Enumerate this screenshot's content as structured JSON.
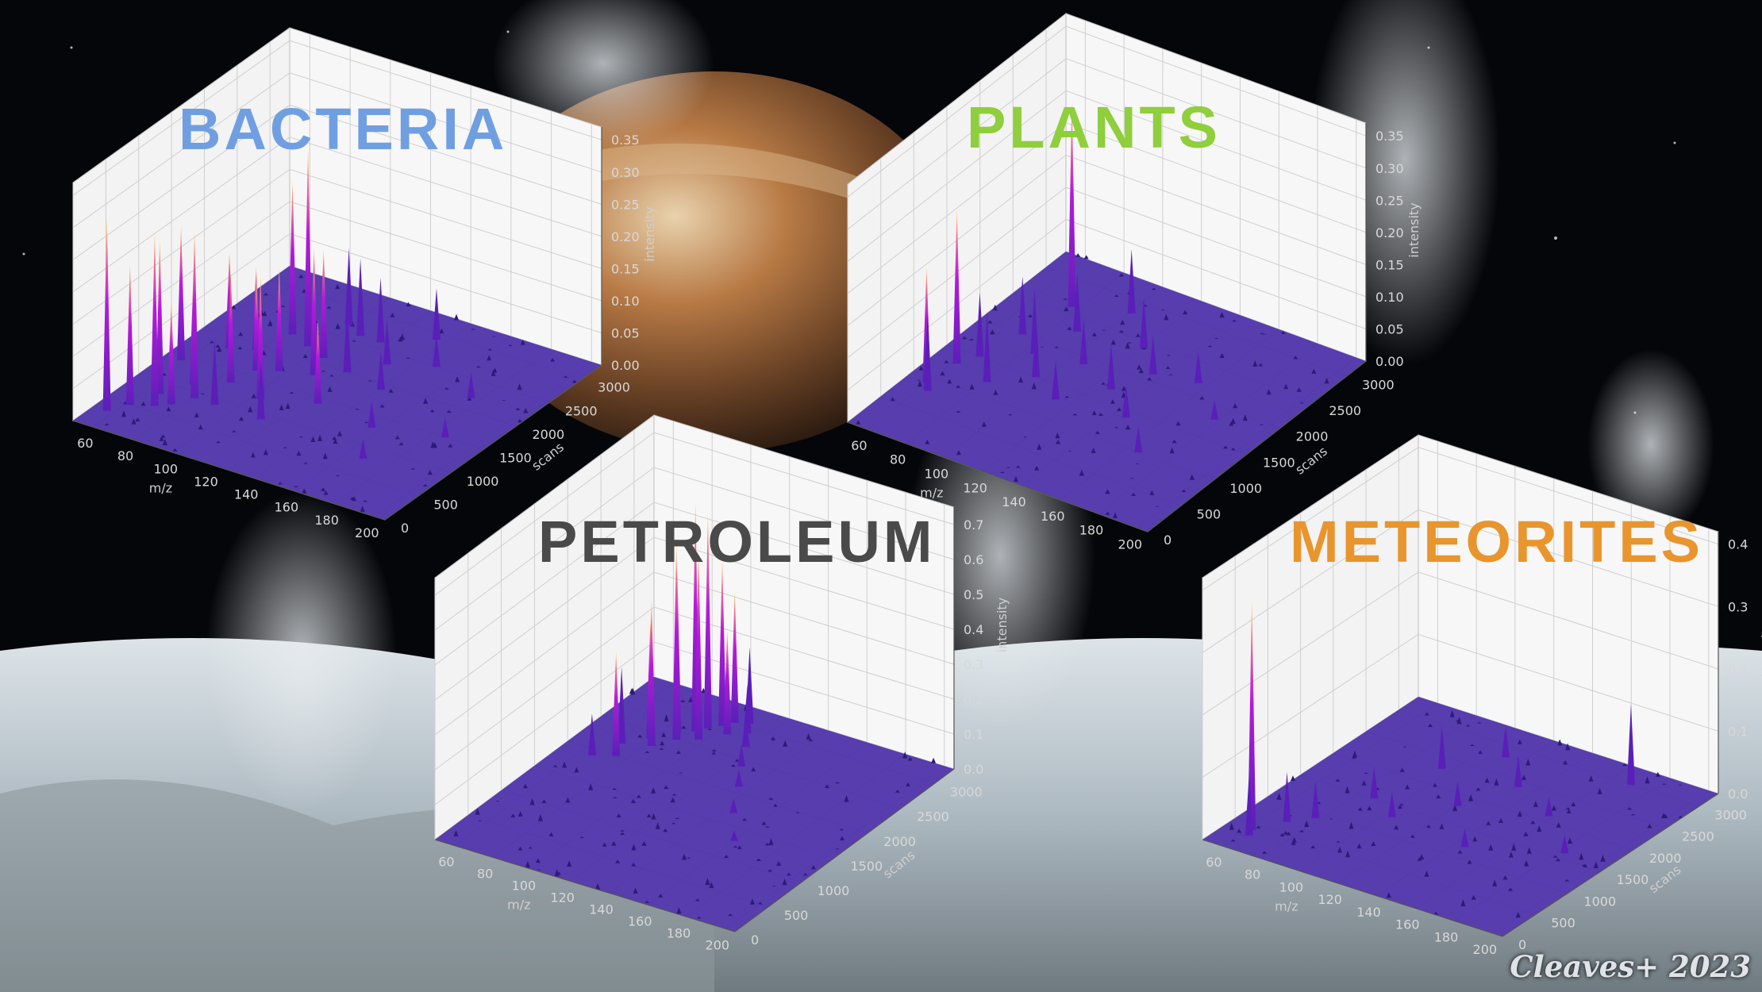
{
  "credit": "Cleaves+ 2023",
  "colors": {
    "bacteria": "#6f9fe0",
    "plants": "#8fce3c",
    "petroleum": "#4a4a4a",
    "meteorites": "#e8952e",
    "surface": "#4a2ea8",
    "peak_low": "#5a1fb8",
    "peak_mid": "#b51ad9",
    "peak_high": "#ffd85a"
  },
  "chart_data": [
    {
      "type": "3d-surface",
      "title": "BACTERIA",
      "xlabel": "m/z",
      "ylabel": "scans",
      "zlabel": "intensity",
      "x_ticks": [
        "60",
        "80",
        "100",
        "120",
        "140",
        "160",
        "180",
        "200"
      ],
      "y_ticks": [
        "0",
        "500",
        "1000",
        "1500",
        "2000",
        "2500",
        "3000"
      ],
      "z_ticks": [
        "0.00",
        "0.05",
        "0.10",
        "0.15",
        "0.20",
        "0.25",
        "0.30",
        "0.35"
      ],
      "xlim": [
        50,
        205
      ],
      "ylim": [
        0,
        3300
      ],
      "zlim": [
        0,
        0.37
      ],
      "peaks": [
        {
          "x": 57,
          "y": 300,
          "z": 0.3
        },
        {
          "x": 58,
          "y": 1400,
          "z": 0.21
        },
        {
          "x": 62,
          "y": 500,
          "z": 0.22
        },
        {
          "x": 67,
          "y": 800,
          "z": 0.24
        },
        {
          "x": 69,
          "y": 1800,
          "z": 0.15
        },
        {
          "x": 71,
          "y": 600,
          "z": 0.27
        },
        {
          "x": 74,
          "y": 1100,
          "z": 0.18
        },
        {
          "x": 76,
          "y": 700,
          "z": 0.16
        },
        {
          "x": 79,
          "y": 1900,
          "z": 0.13
        },
        {
          "x": 81,
          "y": 900,
          "z": 0.26
        },
        {
          "x": 84,
          "y": 2300,
          "z": 0.24
        },
        {
          "x": 86,
          "y": 1300,
          "z": 0.17
        },
        {
          "x": 89,
          "y": 1600,
          "z": 0.14
        },
        {
          "x": 91,
          "y": 900,
          "z": 0.1
        },
        {
          "x": 95,
          "y": 2200,
          "z": 0.31
        },
        {
          "x": 97,
          "y": 1700,
          "z": 0.16
        },
        {
          "x": 99,
          "y": 2700,
          "z": 0.12
        },
        {
          "x": 104,
          "y": 1200,
          "z": 0.19
        },
        {
          "x": 106,
          "y": 2100,
          "z": 0.17
        },
        {
          "x": 108,
          "y": 2600,
          "z": 0.12
        },
        {
          "x": 111,
          "y": 1800,
          "z": 0.2
        },
        {
          "x": 114,
          "y": 900,
          "z": 0.09
        },
        {
          "x": 118,
          "y": 2600,
          "z": 0.1
        },
        {
          "x": 121,
          "y": 2000,
          "z": 0.11
        },
        {
          "x": 126,
          "y": 1400,
          "z": 0.13
        },
        {
          "x": 131,
          "y": 2300,
          "z": 0.07
        },
        {
          "x": 136,
          "y": 2900,
          "z": 0.08
        },
        {
          "x": 141,
          "y": 1900,
          "z": 0.06
        },
        {
          "x": 149,
          "y": 2500,
          "z": 0.05
        },
        {
          "x": 156,
          "y": 1300,
          "z": 0.04
        },
        {
          "x": 168,
          "y": 800,
          "z": 0.03
        },
        {
          "x": 176,
          "y": 2200,
          "z": 0.04
        },
        {
          "x": 186,
          "y": 1500,
          "z": 0.03
        }
      ]
    },
    {
      "type": "3d-surface",
      "title": "PLANTS",
      "xlabel": "m/z",
      "ylabel": "scans",
      "zlabel": "intensity",
      "x_ticks": [
        "60",
        "80",
        "100",
        "120",
        "140",
        "160",
        "180",
        "200"
      ],
      "y_ticks": [
        "0",
        "500",
        "1000",
        "1500",
        "2000",
        "2500",
        "3000"
      ],
      "z_ticks": [
        "0.00",
        "0.05",
        "0.10",
        "0.15",
        "0.20",
        "0.25",
        "0.30",
        "0.35"
      ],
      "xlim": [
        50,
        205
      ],
      "ylim": [
        0,
        3300
      ],
      "zlim": [
        0,
        0.37
      ],
      "peaks": [
        {
          "x": 60,
          "y": 900,
          "z": 0.18
        },
        {
          "x": 62,
          "y": 1300,
          "z": 0.24
        },
        {
          "x": 64,
          "y": 800,
          "z": 0.12
        },
        {
          "x": 67,
          "y": 1500,
          "z": 0.1
        },
        {
          "x": 72,
          "y": 2000,
          "z": 0.09
        },
        {
          "x": 77,
          "y": 2600,
          "z": 0.32
        },
        {
          "x": 81,
          "y": 1200,
          "z": 0.11
        },
        {
          "x": 85,
          "y": 1800,
          "z": 0.1
        },
        {
          "x": 90,
          "y": 2300,
          "z": 0.09
        },
        {
          "x": 96,
          "y": 1500,
          "z": 0.08
        },
        {
          "x": 101,
          "y": 2800,
          "z": 0.1
        },
        {
          "x": 107,
          "y": 1900,
          "z": 0.07
        },
        {
          "x": 113,
          "y": 1300,
          "z": 0.06
        },
        {
          "x": 121,
          "y": 2400,
          "z": 0.08
        },
        {
          "x": 128,
          "y": 1700,
          "z": 0.07
        },
        {
          "x": 136,
          "y": 2100,
          "z": 0.06
        },
        {
          "x": 146,
          "y": 1400,
          "z": 0.05
        },
        {
          "x": 156,
          "y": 2200,
          "z": 0.05
        },
        {
          "x": 166,
          "y": 1000,
          "z": 0.04
        },
        {
          "x": 178,
          "y": 1800,
          "z": 0.03
        }
      ]
    },
    {
      "type": "3d-surface",
      "title": "PETROLEUM",
      "xlabel": "m/z",
      "ylabel": "scans",
      "zlabel": "intensity",
      "x_ticks": [
        "60",
        "80",
        "100",
        "120",
        "140",
        "160",
        "180",
        "200"
      ],
      "y_ticks": [
        "0",
        "500",
        "1000",
        "1500",
        "2000",
        "2500",
        "3000"
      ],
      "z_ticks": [
        "0.0",
        "0.1",
        "0.2",
        "0.3",
        "0.4",
        "0.5",
        "0.6",
        "0.7"
      ],
      "xlim": [
        50,
        205
      ],
      "ylim": [
        0,
        3300
      ],
      "zlim": [
        0,
        0.75
      ],
      "peaks": [
        {
          "x": 66,
          "y": 1900,
          "z": 0.12
        },
        {
          "x": 71,
          "y": 2200,
          "z": 0.22
        },
        {
          "x": 75,
          "y": 2000,
          "z": 0.3
        },
        {
          "x": 79,
          "y": 2400,
          "z": 0.34
        },
        {
          "x": 83,
          "y": 2300,
          "z": 0.42
        },
        {
          "x": 86,
          "y": 2600,
          "z": 0.48
        },
        {
          "x": 89,
          "y": 2500,
          "z": 0.56
        },
        {
          "x": 92,
          "y": 2700,
          "z": 0.66
        },
        {
          "x": 95,
          "y": 2800,
          "z": 0.62
        },
        {
          "x": 97,
          "y": 2600,
          "z": 0.54
        },
        {
          "x": 99,
          "y": 2900,
          "z": 0.48
        },
        {
          "x": 102,
          "y": 3000,
          "z": 0.38
        },
        {
          "x": 105,
          "y": 2800,
          "z": 0.3
        },
        {
          "x": 108,
          "y": 3050,
          "z": 0.22
        },
        {
          "x": 112,
          "y": 2900,
          "z": 0.14
        },
        {
          "x": 118,
          "y": 2700,
          "z": 0.09
        },
        {
          "x": 126,
          "y": 2400,
          "z": 0.06
        },
        {
          "x": 135,
          "y": 2100,
          "z": 0.05
        },
        {
          "x": 146,
          "y": 1700,
          "z": 0.04
        },
        {
          "x": 160,
          "y": 1300,
          "z": 0.03
        }
      ]
    },
    {
      "type": "3d-surface",
      "title": "METEORITES",
      "xlabel": "m/z",
      "ylabel": "scans",
      "zlabel": "intensity",
      "x_ticks": [
        "60",
        "80",
        "100",
        "120",
        "140",
        "160",
        "180",
        "200"
      ],
      "y_ticks": [
        "0",
        "500",
        "1000",
        "1500",
        "2000",
        "2500",
        "3000"
      ],
      "z_ticks": [
        "0.0",
        "0.1",
        "0.2",
        "0.3",
        "0.4"
      ],
      "xlim": [
        50,
        205
      ],
      "ylim": [
        0,
        3300
      ],
      "zlim": [
        0,
        0.42
      ],
      "peaks": [
        {
          "x": 62,
          "y": 400,
          "z": 0.37
        },
        {
          "x": 64,
          "y": 300,
          "z": 0.1
        },
        {
          "x": 70,
          "y": 700,
          "z": 0.08
        },
        {
          "x": 78,
          "y": 900,
          "z": 0.06
        },
        {
          "x": 88,
          "y": 1500,
          "z": 0.05
        },
        {
          "x": 96,
          "y": 2300,
          "z": 0.07
        },
        {
          "x": 104,
          "y": 1300,
          "z": 0.04
        },
        {
          "x": 112,
          "y": 2800,
          "z": 0.05
        },
        {
          "x": 121,
          "y": 1800,
          "z": 0.04
        },
        {
          "x": 132,
          "y": 2400,
          "z": 0.05
        },
        {
          "x": 145,
          "y": 1200,
          "z": 0.03
        },
        {
          "x": 158,
          "y": 2100,
          "z": 0.03
        },
        {
          "x": 170,
          "y": 3000,
          "z": 0.13
        },
        {
          "x": 183,
          "y": 1600,
          "z": 0.03
        }
      ]
    }
  ]
}
